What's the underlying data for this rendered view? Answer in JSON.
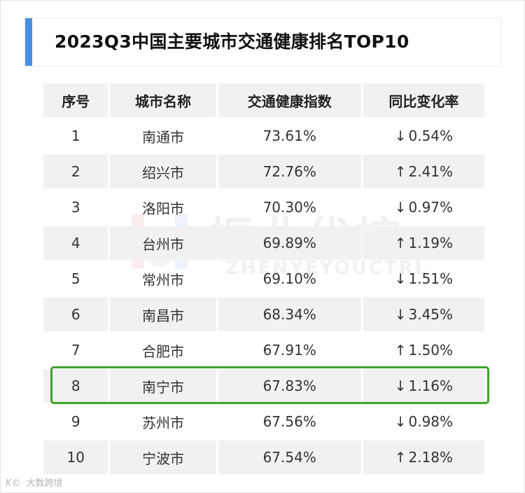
{
  "title": "2023Q3中国主要城市交通健康排名TOP10",
  "headers": [
    "序号",
    "城市名称",
    "交通健康指数",
    "同比变化率"
  ],
  "rows": [
    {
      "rank": "1",
      "city": "南通市",
      "index": "73.61%",
      "direction": "down",
      "arrow": "↓",
      "change": "0.54%"
    },
    {
      "rank": "2",
      "city": "绍兴市",
      "index": "72.76%",
      "direction": "up",
      "arrow": "↑",
      "change": "2.41%"
    },
    {
      "rank": "3",
      "city": "洛阳市",
      "index": "70.30%",
      "direction": "down",
      "arrow": "↓",
      "change": "0.97%"
    },
    {
      "rank": "4",
      "city": "台州市",
      "index": "69.89%",
      "direction": "up",
      "arrow": "↑",
      "change": "1.19%"
    },
    {
      "rank": "5",
      "city": "常州市",
      "index": "69.10%",
      "direction": "down",
      "arrow": "↓",
      "change": "1.51%"
    },
    {
      "rank": "6",
      "city": "南昌市",
      "index": "68.34%",
      "direction": "down",
      "arrow": "↓",
      "change": "3.45%"
    },
    {
      "rank": "7",
      "city": "合肥市",
      "index": "67.91%",
      "direction": "up",
      "arrow": "↑",
      "change": "1.50%"
    },
    {
      "rank": "8",
      "city": "南宁市",
      "index": "67.83%",
      "direction": "down",
      "arrow": "↓",
      "change": "1.16%"
    },
    {
      "rank": "9",
      "city": "苏州市",
      "index": "67.56%",
      "direction": "down",
      "arrow": "↓",
      "change": "0.98%"
    },
    {
      "rank": "10",
      "city": "宁波市",
      "index": "67.54%",
      "direction": "up",
      "arrow": "↑",
      "change": "2.18%"
    }
  ],
  "highlighted_rank": "8",
  "watermark": {
    "text": "振业优控",
    "sub": "ZHENYEYOUCTRL"
  },
  "source_mark": {
    "logo": "K©",
    "text": "大数跨境"
  },
  "colors": {
    "accent": "#4a90e2",
    "up": "#c81e1e",
    "down": "#2e9a3e",
    "highlight": "#3ea329",
    "stripe": "#f1f1f1"
  }
}
